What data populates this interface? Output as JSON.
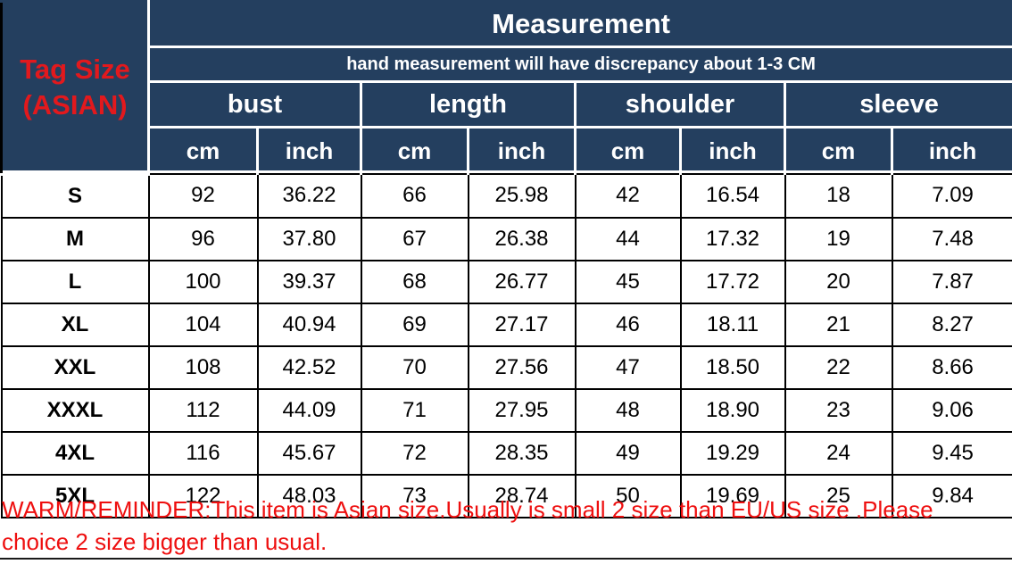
{
  "colors": {
    "header_bg": "#243f5f",
    "tag_size_red": "#e2191d",
    "warning_red": "#ee0f0f",
    "header_text": "#ffffff",
    "body_text": "#000000"
  },
  "header": {
    "tag_size_line1": "Tag Size",
    "tag_size_line2": "(ASIAN)",
    "title": "Measurement",
    "subtitle": "hand measurement will have discrepancy about 1-3 CM",
    "groups": [
      "bust",
      "length",
      "shoulder",
      "sleeve"
    ],
    "units": [
      "cm",
      "inch",
      "cm",
      "inch",
      "cm",
      "inch",
      "cm",
      "inch"
    ]
  },
  "table": {
    "rows": [
      {
        "size": "S",
        "values": [
          "92",
          "36.22",
          "66",
          "25.98",
          "42",
          "16.54",
          "18",
          "7.09"
        ]
      },
      {
        "size": "M",
        "values": [
          "96",
          "37.80",
          "67",
          "26.38",
          "44",
          "17.32",
          "19",
          "7.48"
        ]
      },
      {
        "size": "L",
        "values": [
          "100",
          "39.37",
          "68",
          "26.77",
          "45",
          "17.72",
          "20",
          "7.87"
        ]
      },
      {
        "size": "XL",
        "values": [
          "104",
          "40.94",
          "69",
          "27.17",
          "46",
          "18.11",
          "21",
          "8.27"
        ]
      },
      {
        "size": "XXL",
        "values": [
          "108",
          "42.52",
          "70",
          "27.56",
          "47",
          "18.50",
          "22",
          "8.66"
        ]
      },
      {
        "size": "XXXL",
        "values": [
          "112",
          "44.09",
          "71",
          "27.95",
          "48",
          "18.90",
          "23",
          "9.06"
        ]
      },
      {
        "size": "4XL",
        "values": [
          "116",
          "45.67",
          "72",
          "28.35",
          "49",
          "19.29",
          "24",
          "9.45"
        ]
      },
      {
        "size": "5XL",
        "values": [
          "122",
          "48.03",
          "73",
          "28.74",
          "50",
          "19.69",
          "25",
          "9.84"
        ]
      }
    ]
  },
  "warning": {
    "line1": "WARM/REMINDER:This item is Asian size.Usually is small 2 size than EU/US size .Please",
    "line2": "choice 2 size bigger than usual."
  },
  "chart_data": {
    "type": "table",
    "title": "Measurement",
    "note": "hand measurement will have discrepancy about 1-3 CM",
    "row_header": "Tag Size (ASIAN)",
    "column_groups": [
      "bust",
      "length",
      "shoulder",
      "sleeve"
    ],
    "columns": [
      "bust_cm",
      "bust_inch",
      "length_cm",
      "length_inch",
      "shoulder_cm",
      "shoulder_inch",
      "sleeve_cm",
      "sleeve_inch"
    ],
    "rows": [
      {
        "size": "S",
        "bust_cm": 92,
        "bust_inch": 36.22,
        "length_cm": 66,
        "length_inch": 25.98,
        "shoulder_cm": 42,
        "shoulder_inch": 16.54,
        "sleeve_cm": 18,
        "sleeve_inch": 7.09
      },
      {
        "size": "M",
        "bust_cm": 96,
        "bust_inch": 37.8,
        "length_cm": 67,
        "length_inch": 26.38,
        "shoulder_cm": 44,
        "shoulder_inch": 17.32,
        "sleeve_cm": 19,
        "sleeve_inch": 7.48
      },
      {
        "size": "L",
        "bust_cm": 100,
        "bust_inch": 39.37,
        "length_cm": 68,
        "length_inch": 26.77,
        "shoulder_cm": 45,
        "shoulder_inch": 17.72,
        "sleeve_cm": 20,
        "sleeve_inch": 7.87
      },
      {
        "size": "XL",
        "bust_cm": 104,
        "bust_inch": 40.94,
        "length_cm": 69,
        "length_inch": 27.17,
        "shoulder_cm": 46,
        "shoulder_inch": 18.11,
        "sleeve_cm": 21,
        "sleeve_inch": 8.27
      },
      {
        "size": "XXL",
        "bust_cm": 108,
        "bust_inch": 42.52,
        "length_cm": 70,
        "length_inch": 27.56,
        "shoulder_cm": 47,
        "shoulder_inch": 18.5,
        "sleeve_cm": 22,
        "sleeve_inch": 8.66
      },
      {
        "size": "XXXL",
        "bust_cm": 112,
        "bust_inch": 44.09,
        "length_cm": 71,
        "length_inch": 27.95,
        "shoulder_cm": 48,
        "shoulder_inch": 18.9,
        "sleeve_cm": 23,
        "sleeve_inch": 9.06
      },
      {
        "size": "4XL",
        "bust_cm": 116,
        "bust_inch": 45.67,
        "length_cm": 72,
        "length_inch": 28.35,
        "shoulder_cm": 49,
        "shoulder_inch": 19.29,
        "sleeve_cm": 24,
        "sleeve_inch": 9.45
      },
      {
        "size": "5XL",
        "bust_cm": 122,
        "bust_inch": 48.03,
        "length_cm": 73,
        "length_inch": 28.74,
        "shoulder_cm": 50,
        "shoulder_inch": 19.69,
        "sleeve_cm": 25,
        "sleeve_inch": 9.84
      }
    ],
    "footnote": "WARM/REMINDER:This item is Asian size.Usually is small 2 size than EU/US size .Please choice 2 size bigger than usual."
  }
}
